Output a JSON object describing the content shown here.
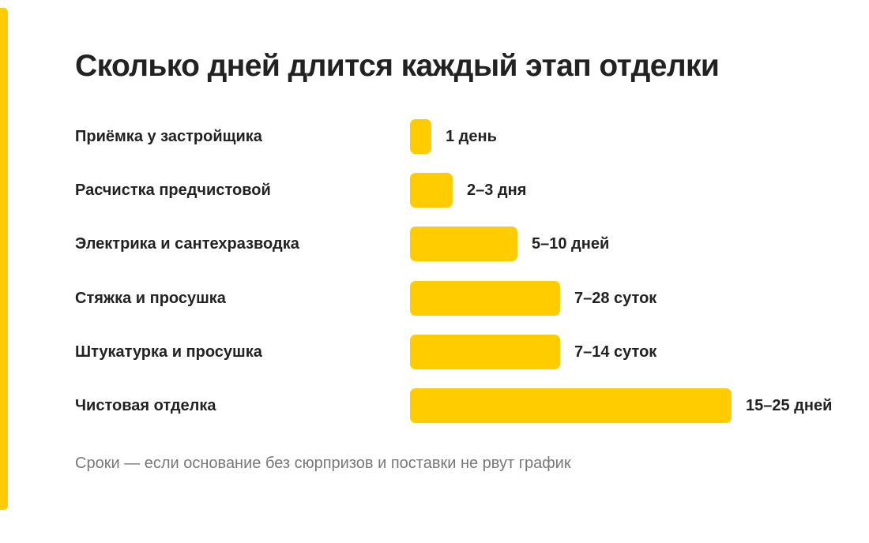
{
  "colors": {
    "accent": "#FFCC00",
    "text": "#222222",
    "muted": "#777777"
  },
  "chart_data": {
    "type": "bar",
    "orientation": "horizontal",
    "title": "Сколько дней длится каждый этап отделки",
    "categories": [
      "Приёмка у застройщика",
      "Расчистка предчистовой",
      "Электрика и сантехразводка",
      "Стяжка и просушка",
      "Штукатурка и просушка",
      "Чистовая отделка"
    ],
    "value_labels": [
      "1 день",
      "2–3 дня",
      "5–10 дней",
      "7–28 суток",
      "7–14 суток",
      "15–25 дней"
    ],
    "values": [
      0.5,
      1,
      2.5,
      3.5,
      3.5,
      7.5
    ],
    "xlim": [
      0,
      7.5
    ],
    "grid": false,
    "legend": "none",
    "note": "Сроки — если основание без сюрпризов и поставки не рвут график"
  }
}
